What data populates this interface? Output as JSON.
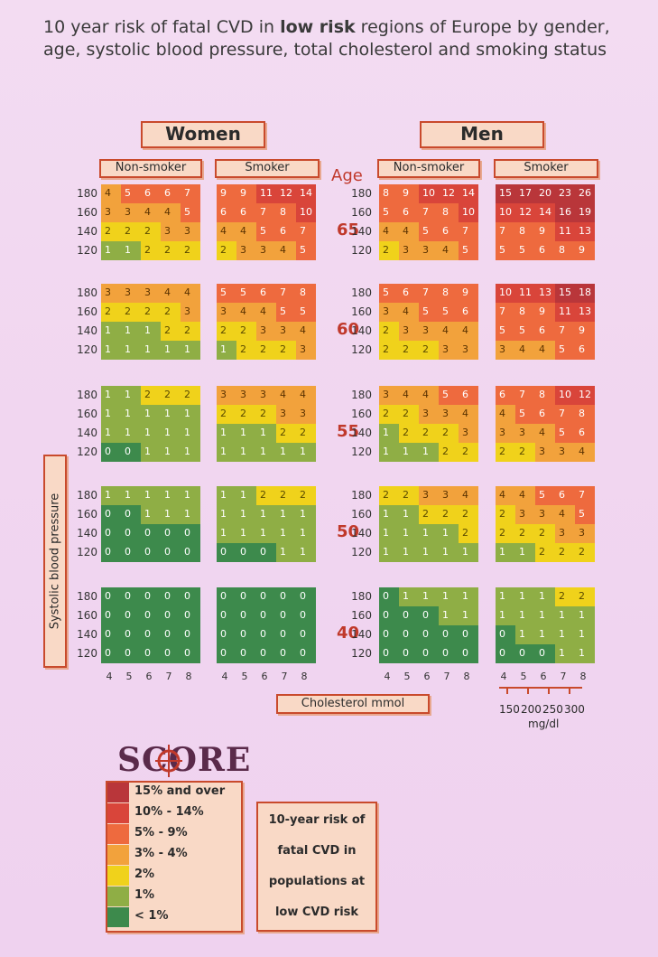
{
  "title": {
    "part1": "10 year risk of fatal CVD in ",
    "bold": "low risk",
    "part2": " regions of Europe by gender, age, systolic blood pressure, total cholesterol and smoking status"
  },
  "labels": {
    "women": "Women",
    "men": "Men",
    "non_smoker": "Non-smoker",
    "smoker": "Smoker",
    "age": "Age",
    "sbp_axis": "Systolic blood pressure",
    "cholesterol_axis": "Cholesterol mmol",
    "mgdl_unit": "mg/dl",
    "mgdl_ticks": [
      "150",
      "200",
      "250",
      "300"
    ],
    "score_logo": "SCORE"
  },
  "legend": {
    "items": [
      {
        "label": "15% and over",
        "color": "#b9363a"
      },
      {
        "label": "10% - 14%",
        "color": "#d9453a"
      },
      {
        "label": "5% - 9%",
        "color": "#ee6a3e"
      },
      {
        "label": "3% - 4%",
        "color": "#f2a23c"
      },
      {
        "label": "2%",
        "color": "#f0d21b"
      },
      {
        "label": "1%",
        "color": "#8fae45"
      },
      {
        "label": "< 1%",
        "color": "#3d8a4c"
      }
    ]
  },
  "note": {
    "line1": "10-year risk of",
    "line2": "fatal CVD in",
    "line3": "populations at",
    "line4": "low CVD risk"
  },
  "chart_data": {
    "type": "heatmap",
    "title": "10 year risk of fatal CVD in low risk regions of Europe by gender, age, systolic blood pressure, total cholesterol and smoking status",
    "x_label": "Cholesterol mmol",
    "x_values": [
      4,
      5,
      6,
      7,
      8
    ],
    "y_label": "Systolic blood pressure",
    "y_values": [
      180,
      160,
      140,
      120
    ],
    "ages": [
      65,
      60,
      55,
      50,
      40
    ],
    "groups": [
      {
        "gender": "Women",
        "smoking": "Non-smoker",
        "grids": {
          "65": [
            [
              4,
              5,
              6,
              6,
              7
            ],
            [
              3,
              3,
              4,
              4,
              5
            ],
            [
              2,
              2,
              2,
              3,
              3
            ],
            [
              1,
              1,
              2,
              2,
              2
            ]
          ],
          "60": [
            [
              3,
              3,
              3,
              4,
              4
            ],
            [
              2,
              2,
              2,
              2,
              3
            ],
            [
              1,
              1,
              1,
              2,
              2
            ],
            [
              1,
              1,
              1,
              1,
              1
            ]
          ],
          "55": [
            [
              1,
              1,
              2,
              2,
              2
            ],
            [
              1,
              1,
              1,
              1,
              1
            ],
            [
              1,
              1,
              1,
              1,
              1
            ],
            [
              0,
              0,
              1,
              1,
              1
            ]
          ],
          "50": [
            [
              1,
              1,
              1,
              1,
              1
            ],
            [
              0,
              0,
              1,
              1,
              1
            ],
            [
              0,
              0,
              0,
              0,
              0
            ],
            [
              0,
              0,
              0,
              0,
              0
            ]
          ],
          "40": [
            [
              0,
              0,
              0,
              0,
              0
            ],
            [
              0,
              0,
              0,
              0,
              0
            ],
            [
              0,
              0,
              0,
              0,
              0
            ],
            [
              0,
              0,
              0,
              0,
              0
            ]
          ]
        }
      },
      {
        "gender": "Women",
        "smoking": "Smoker",
        "grids": {
          "65": [
            [
              9,
              9,
              11,
              12,
              14
            ],
            [
              6,
              6,
              7,
              8,
              10
            ],
            [
              4,
              4,
              5,
              6,
              7
            ],
            [
              2,
              3,
              3,
              4,
              5
            ]
          ],
          "60": [
            [
              5,
              5,
              6,
              7,
              8
            ],
            [
              3,
              4,
              4,
              5,
              5
            ],
            [
              2,
              2,
              3,
              3,
              4
            ],
            [
              1,
              2,
              2,
              2,
              3
            ]
          ],
          "55": [
            [
              3,
              3,
              3,
              4,
              4
            ],
            [
              2,
              2,
              2,
              3,
              3
            ],
            [
              1,
              1,
              1,
              2,
              2
            ],
            [
              1,
              1,
              1,
              1,
              1
            ]
          ],
          "50": [
            [
              1,
              1,
              2,
              2,
              2
            ],
            [
              1,
              1,
              1,
              1,
              1
            ],
            [
              1,
              1,
              1,
              1,
              1
            ],
            [
              0,
              0,
              0,
              1,
              1
            ]
          ],
          "40": [
            [
              0,
              0,
              0,
              0,
              0
            ],
            [
              0,
              0,
              0,
              0,
              0
            ],
            [
              0,
              0,
              0,
              0,
              0
            ],
            [
              0,
              0,
              0,
              0,
              0
            ]
          ]
        }
      },
      {
        "gender": "Men",
        "smoking": "Non-smoker",
        "grids": {
          "65": [
            [
              8,
              9,
              10,
              12,
              14
            ],
            [
              5,
              6,
              7,
              8,
              10
            ],
            [
              4,
              4,
              5,
              6,
              7
            ],
            [
              2,
              3,
              3,
              4,
              5
            ]
          ],
          "60": [
            [
              5,
              6,
              7,
              8,
              9
            ],
            [
              3,
              4,
              5,
              5,
              6
            ],
            [
              2,
              3,
              3,
              4,
              4
            ],
            [
              2,
              2,
              2,
              3,
              3
            ]
          ],
          "55": [
            [
              3,
              4,
              4,
              5,
              6
            ],
            [
              2,
              2,
              3,
              3,
              4
            ],
            [
              1,
              2,
              2,
              2,
              3
            ],
            [
              1,
              1,
              1,
              2,
              2
            ]
          ],
          "50": [
            [
              2,
              2,
              3,
              3,
              4
            ],
            [
              1,
              1,
              2,
              2,
              2
            ],
            [
              1,
              1,
              1,
              1,
              2
            ],
            [
              1,
              1,
              1,
              1,
              1
            ]
          ],
          "40": [
            [
              0,
              1,
              1,
              1,
              1
            ],
            [
              0,
              0,
              0,
              1,
              1
            ],
            [
              0,
              0,
              0,
              0,
              0
            ],
            [
              0,
              0,
              0,
              0,
              0
            ]
          ]
        }
      },
      {
        "gender": "Men",
        "smoking": "Smoker",
        "grids": {
          "65": [
            [
              15,
              17,
              20,
              23,
              26
            ],
            [
              10,
              12,
              14,
              16,
              19
            ],
            [
              7,
              8,
              9,
              11,
              13
            ],
            [
              5,
              5,
              6,
              8,
              9
            ]
          ],
          "60": [
            [
              10,
              11,
              13,
              15,
              18
            ],
            [
              7,
              8,
              9,
              11,
              13
            ],
            [
              5,
              5,
              6,
              7,
              9
            ],
            [
              3,
              4,
              4,
              5,
              6
            ]
          ],
          "55": [
            [
              6,
              7,
              8,
              10,
              12
            ],
            [
              4,
              5,
              6,
              7,
              8
            ],
            [
              3,
              3,
              4,
              5,
              6
            ],
            [
              2,
              2,
              3,
              3,
              4
            ]
          ],
          "50": [
            [
              4,
              4,
              5,
              6,
              7
            ],
            [
              2,
              3,
              3,
              4,
              5
            ],
            [
              2,
              2,
              2,
              3,
              3
            ],
            [
              1,
              1,
              2,
              2,
              2
            ]
          ],
          "40": [
            [
              1,
              1,
              1,
              2,
              2
            ],
            [
              1,
              1,
              1,
              1,
              1
            ],
            [
              0,
              1,
              1,
              1,
              1
            ],
            [
              0,
              0,
              0,
              1,
              1
            ]
          ]
        }
      }
    ]
  }
}
